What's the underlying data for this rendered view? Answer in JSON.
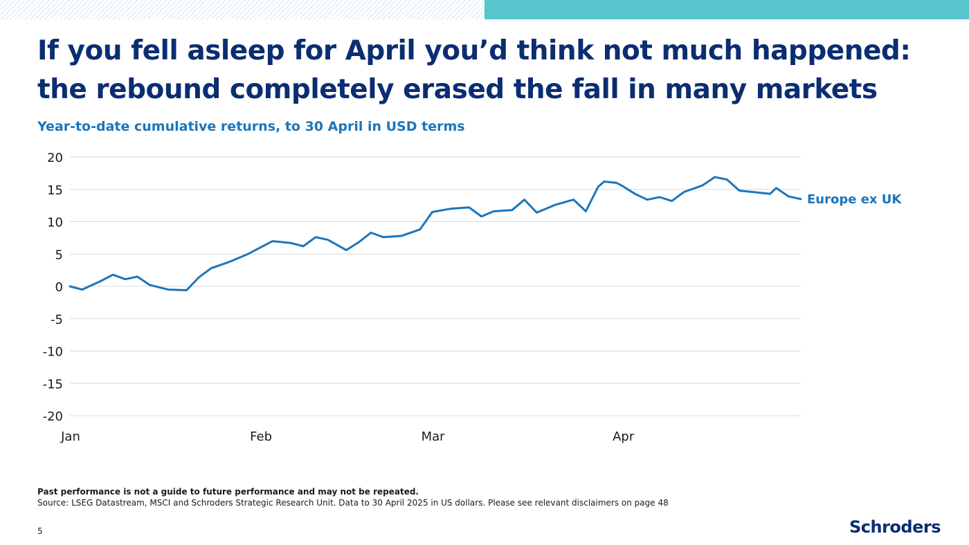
{
  "header": {
    "title_line1": "If you fell asleep for April you’d think not much happened:",
    "title_line2": "the rebound completely erased the fall in many markets",
    "subtitle": "Year-to-date cumulative returns, to 30 April in USD terms"
  },
  "footer": {
    "disclaimer": "Past performance is not a guide to future performance and may not be repeated.",
    "source": "Source: LSEG Datastream, MSCI and Schroders Strategic Research Unit. Data to 30 April 2025 in US dollars. Please see relevant disclaimers on page 48",
    "page_number": "5",
    "logo_text": "Schroders"
  },
  "chart_data": {
    "type": "line",
    "title": "Year-to-date cumulative returns, to 30 April in USD terms",
    "xlabel": "",
    "ylabel": "",
    "ylim": [
      -20,
      20
    ],
    "yticks": [
      20,
      15,
      10,
      5,
      0,
      -5,
      -10,
      -15,
      -20
    ],
    "xlim": [
      "2025-01-01",
      "2025-04-30"
    ],
    "xticks": [
      {
        "label": "Jan",
        "date": "2025-01-01"
      },
      {
        "label": "Feb",
        "date": "2025-02-01"
      },
      {
        "label": "Mar",
        "date": "2025-03-01"
      },
      {
        "label": "Apr",
        "date": "2025-04-01"
      }
    ],
    "grid": true,
    "legend": "right",
    "series": [
      {
        "name": "Europe ex UK",
        "color": "#1b75bb",
        "points": [
          [
            "2025-01-01",
            0
          ],
          [
            "2025-01-03",
            -0.5
          ],
          [
            "2025-01-06",
            0.8
          ],
          [
            "2025-01-08",
            1.8
          ],
          [
            "2025-01-10",
            1.1
          ],
          [
            "2025-01-12",
            1.5
          ],
          [
            "2025-01-14",
            0.2
          ],
          [
            "2025-01-17",
            -0.5
          ],
          [
            "2025-01-20",
            -0.6
          ],
          [
            "2025-01-22",
            1.4
          ],
          [
            "2025-01-24",
            2.8
          ],
          [
            "2025-01-27",
            3.8
          ],
          [
            "2025-01-30",
            5.0
          ],
          [
            "2025-01-31",
            5.5
          ],
          [
            "2025-02-03",
            7.0
          ],
          [
            "2025-02-06",
            6.7
          ],
          [
            "2025-02-08",
            6.2
          ],
          [
            "2025-02-10",
            7.6
          ],
          [
            "2025-02-12",
            7.2
          ],
          [
            "2025-02-15",
            5.6
          ],
          [
            "2025-02-17",
            6.8
          ],
          [
            "2025-02-19",
            8.3
          ],
          [
            "2025-02-21",
            7.6
          ],
          [
            "2025-02-24",
            7.8
          ],
          [
            "2025-02-27",
            8.8
          ],
          [
            "2025-03-01",
            11.5
          ],
          [
            "2025-03-04",
            12.0
          ],
          [
            "2025-03-07",
            12.2
          ],
          [
            "2025-03-09",
            10.8
          ],
          [
            "2025-03-11",
            11.6
          ],
          [
            "2025-03-14",
            11.8
          ],
          [
            "2025-03-16",
            13.4
          ],
          [
            "2025-03-18",
            11.4
          ],
          [
            "2025-03-21",
            12.6
          ],
          [
            "2025-03-24",
            13.4
          ],
          [
            "2025-03-26",
            11.6
          ],
          [
            "2025-03-28",
            15.4
          ],
          [
            "2025-03-29",
            16.2
          ],
          [
            "2025-03-31",
            16.0
          ],
          [
            "2025-04-01",
            15.5
          ],
          [
            "2025-04-03",
            14.3
          ],
          [
            "2025-04-05",
            13.4
          ],
          [
            "2025-04-07",
            13.8
          ],
          [
            "2025-04-09",
            13.2
          ],
          [
            "2025-04-11",
            14.6
          ],
          [
            "2025-04-14",
            15.6
          ],
          [
            "2025-04-16",
            16.9
          ],
          [
            "2025-04-18",
            16.5
          ],
          [
            "2025-04-20",
            14.8
          ],
          [
            "2025-04-23",
            14.5
          ],
          [
            "2025-04-25",
            14.3
          ],
          [
            "2025-04-26",
            15.2
          ],
          [
            "2025-04-28",
            13.9
          ],
          [
            "2025-04-30",
            13.5
          ]
        ]
      }
    ]
  }
}
